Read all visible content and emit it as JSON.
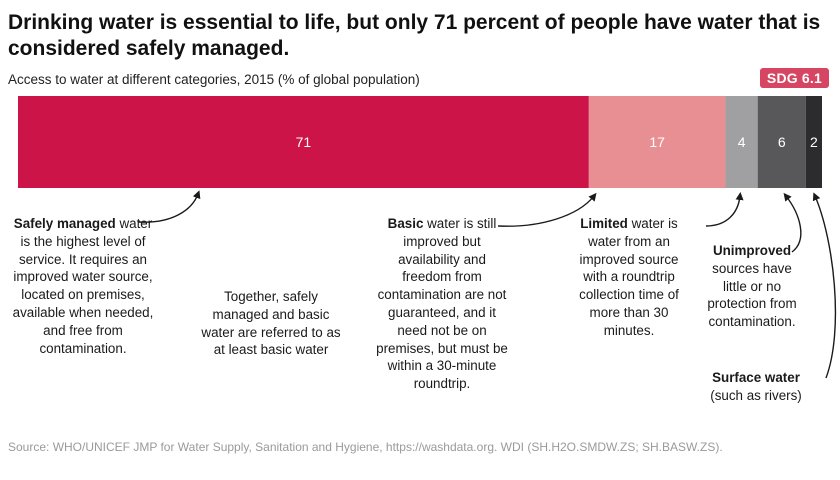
{
  "header": {
    "title": "Drinking water is essential to life, but only 71 percent of people have water that is considered safely managed.",
    "subtitle": "Access to water at different categories, 2015 (% of global population)",
    "badge": "SDG 6.1"
  },
  "chart_data": {
    "type": "bar",
    "orientation": "horizontal-stacked",
    "categories": [
      "Safely managed",
      "Basic",
      "Limited",
      "Unimproved",
      "Surface water"
    ],
    "values": [
      71,
      17,
      4,
      6,
      2
    ],
    "colors": [
      "#cc1448",
      "#e88f93",
      "#a0a0a2",
      "#58585a",
      "#2c2c2e"
    ],
    "label_colors": [
      "#ffffff",
      "#ffffff",
      "#ffffff",
      "#ffffff",
      "#ffffff"
    ],
    "xlim": [
      0,
      100
    ],
    "grid": false,
    "legend": "none"
  },
  "annotations": {
    "safely_managed": {
      "bold": "Safely managed",
      "text": "water is the highest level of service. It requires an improved water source, located on premises, available when needed, and free from contamination."
    },
    "together": {
      "text": "Together, safely managed and basic water are referred to as at least basic water"
    },
    "basic": {
      "bold": "Basic",
      "text": "water is still improved but availability and freedom from contamination are not guaranteed, and it need not be on premises, but must be within a 30-minute roundtrip."
    },
    "limited": {
      "bold": "Limited",
      "text": "water is water from an improved source with a roundtrip collection time of more than 30 minutes."
    },
    "unimproved": {
      "bold": "Unimproved",
      "text": "sources have little or no protection from contamination."
    },
    "surface": {
      "bold": "Surface water",
      "text": "(such as rivers)"
    }
  },
  "footer": {
    "source": "Source: WHO/UNICEF JMP for Water Supply, Sanitation and Hygiene, https://washdata.org. WDI (SH.H2O.SMDW.ZS; SH.BASW.ZS)."
  }
}
